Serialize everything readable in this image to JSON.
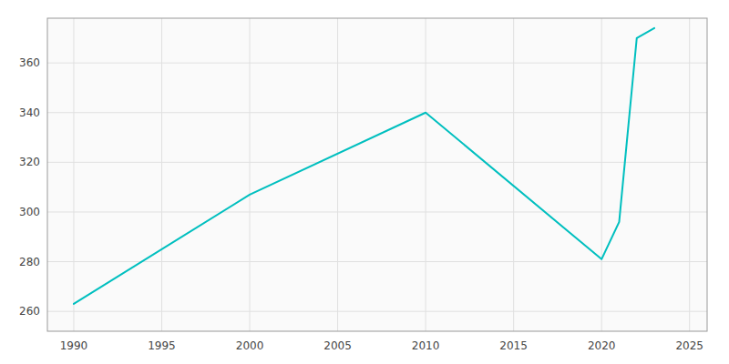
{
  "chart_data": {
    "type": "line",
    "x": [
      1990,
      2000,
      2010,
      2020,
      2021,
      2022,
      2023
    ],
    "values": [
      263,
      307,
      340,
      281,
      296,
      370,
      374
    ],
    "color": "#00BFBF",
    "xlim": [
      1988.5,
      2026
    ],
    "ylim": [
      252,
      378
    ],
    "xticks": [
      1990,
      1995,
      2000,
      2005,
      2010,
      2015,
      2020,
      2025
    ],
    "yticks": [
      260,
      280,
      300,
      320,
      340,
      360
    ],
    "grid": true
  }
}
